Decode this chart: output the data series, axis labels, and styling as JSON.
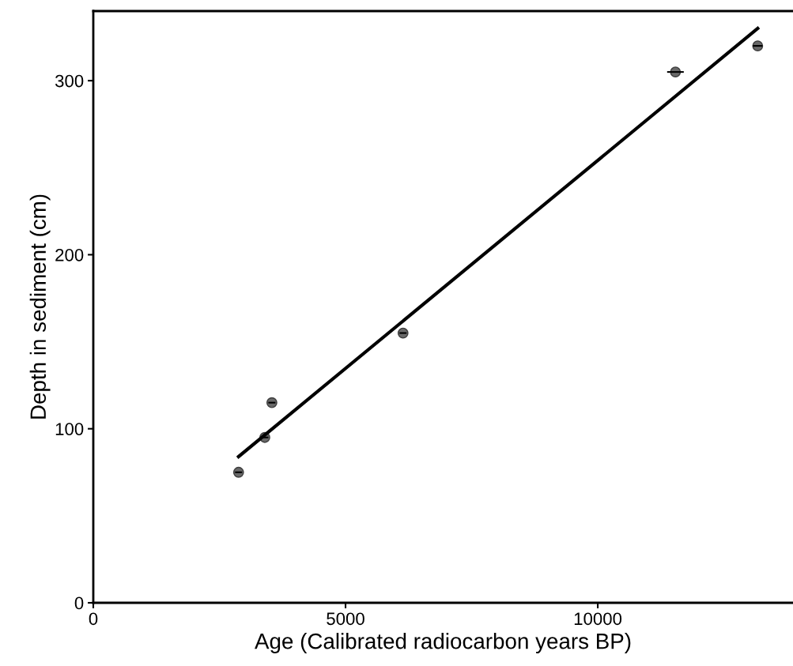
{
  "chart_data": {
    "type": "scatter",
    "xlabel": "Age (Calibrated radiocarbon years BP)",
    "ylabel": "Depth in sediment (cm)",
    "xlim": [
      0,
      13870
    ],
    "ylim": [
      0,
      340
    ],
    "xticks": [
      0,
      5000,
      10000
    ],
    "yticks": [
      0,
      100,
      200,
      300
    ],
    "grid": false,
    "series": [
      {
        "color": "#595959",
        "marker": "circle",
        "x": [
          2880,
          3400,
          3540,
          6140,
          11540,
          13170
        ],
        "values": [
          75,
          95,
          115,
          155,
          305,
          320
        ],
        "xerrors": [
          70,
          70,
          70,
          70,
          165,
          95
        ]
      },
      {
        "type": "line",
        "color": "#000000",
        "x": [
          2880,
          13170
        ],
        "values": [
          84,
          330
        ],
        "line_style": "solid",
        "marker": "none"
      }
    ]
  }
}
